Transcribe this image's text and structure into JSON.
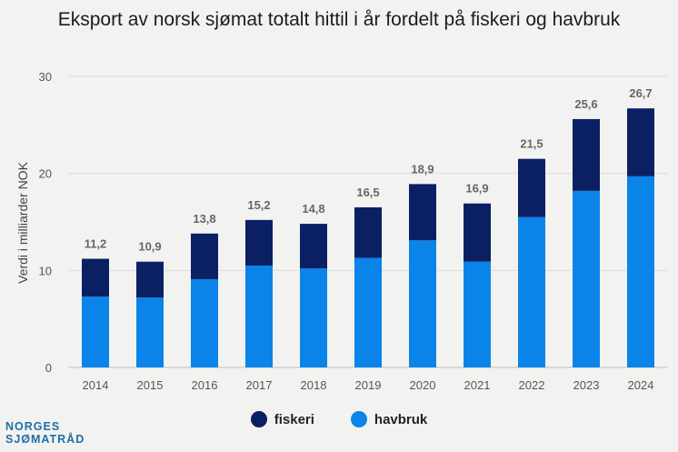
{
  "chart_data": {
    "type": "bar",
    "stacked": true,
    "title": "Eksport av norsk sjømat totalt hittil i år fordelt på fiskeri og havbruk",
    "ylabel": "Verdi i milliarder NOK",
    "xlabel": "",
    "ylim": [
      0,
      30
    ],
    "yticks": [
      "0",
      "10",
      "20",
      "30"
    ],
    "categories": [
      "2014",
      "2015",
      "2016",
      "2017",
      "2018",
      "2019",
      "2020",
      "2021",
      "2022",
      "2023",
      "2024"
    ],
    "series": [
      {
        "name": "havbruk",
        "color": "#0a84e8",
        "values": [
          7.3,
          7.2,
          9.1,
          10.5,
          10.2,
          11.3,
          13.1,
          10.9,
          15.5,
          18.2,
          19.7
        ]
      },
      {
        "name": "fiskeri",
        "color": "#0b1f63",
        "values": [
          3.9,
          3.7,
          4.7,
          4.7,
          4.6,
          5.2,
          5.8,
          6.0,
          6.0,
          7.4,
          7.0
        ]
      }
    ],
    "totals": [
      "11,2",
      "10,9",
      "13,8",
      "15,2",
      "14,8",
      "16,5",
      "18,9",
      "16,9",
      "21,5",
      "25,6",
      "26,7"
    ],
    "legend": {
      "position": "bottom",
      "entries": [
        "fiskeri",
        "havbruk"
      ]
    },
    "grid": true
  },
  "logo": {
    "line1": "NORGES",
    "line2": "SJØMATRÅD"
  }
}
